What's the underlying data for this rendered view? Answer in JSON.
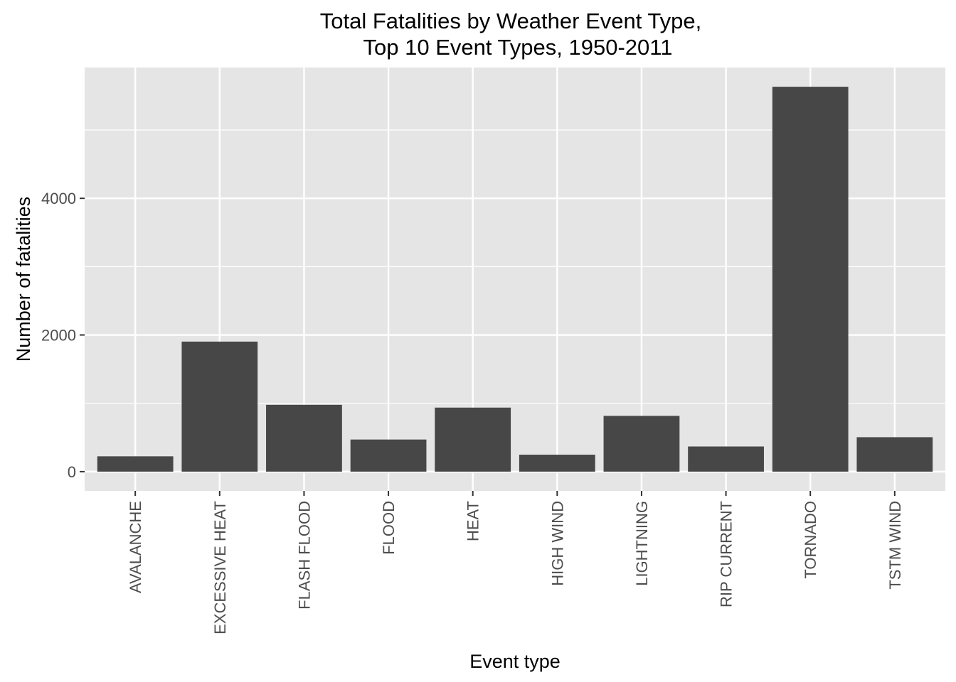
{
  "chart_data": {
    "type": "bar",
    "title_lines": [
      "Total Fatalities by Weather Event Type,",
      "Top 10 Event Types, 1950-2011"
    ],
    "xlabel": "Event type",
    "ylabel": "Number of fatalities",
    "categories": [
      "AVALANCHE",
      "EXCESSIVE HEAT",
      "FLASH FLOOD",
      "FLOOD",
      "HEAT",
      "HIGH WIND",
      "LIGHTNING",
      "RIP CURRENT",
      "TORNADO",
      "TSTM WIND"
    ],
    "values": [
      224,
      1903,
      978,
      470,
      937,
      248,
      816,
      368,
      5633,
      504
    ],
    "ylim": [
      -282,
      5915
    ],
    "y_ticks": [
      0,
      2000,
      4000
    ],
    "y_tick_labels": [
      "0",
      "2000",
      "4000"
    ],
    "y_minor_ticks": [
      1000,
      3000,
      5000
    ],
    "grid": true,
    "legend": "none",
    "colors": {
      "bar": "#474747",
      "panel_background": "#e5e5e5",
      "grid_line": "#ffffff",
      "tick_mark": "#333333",
      "tick_label": "#4d4d4d"
    }
  }
}
